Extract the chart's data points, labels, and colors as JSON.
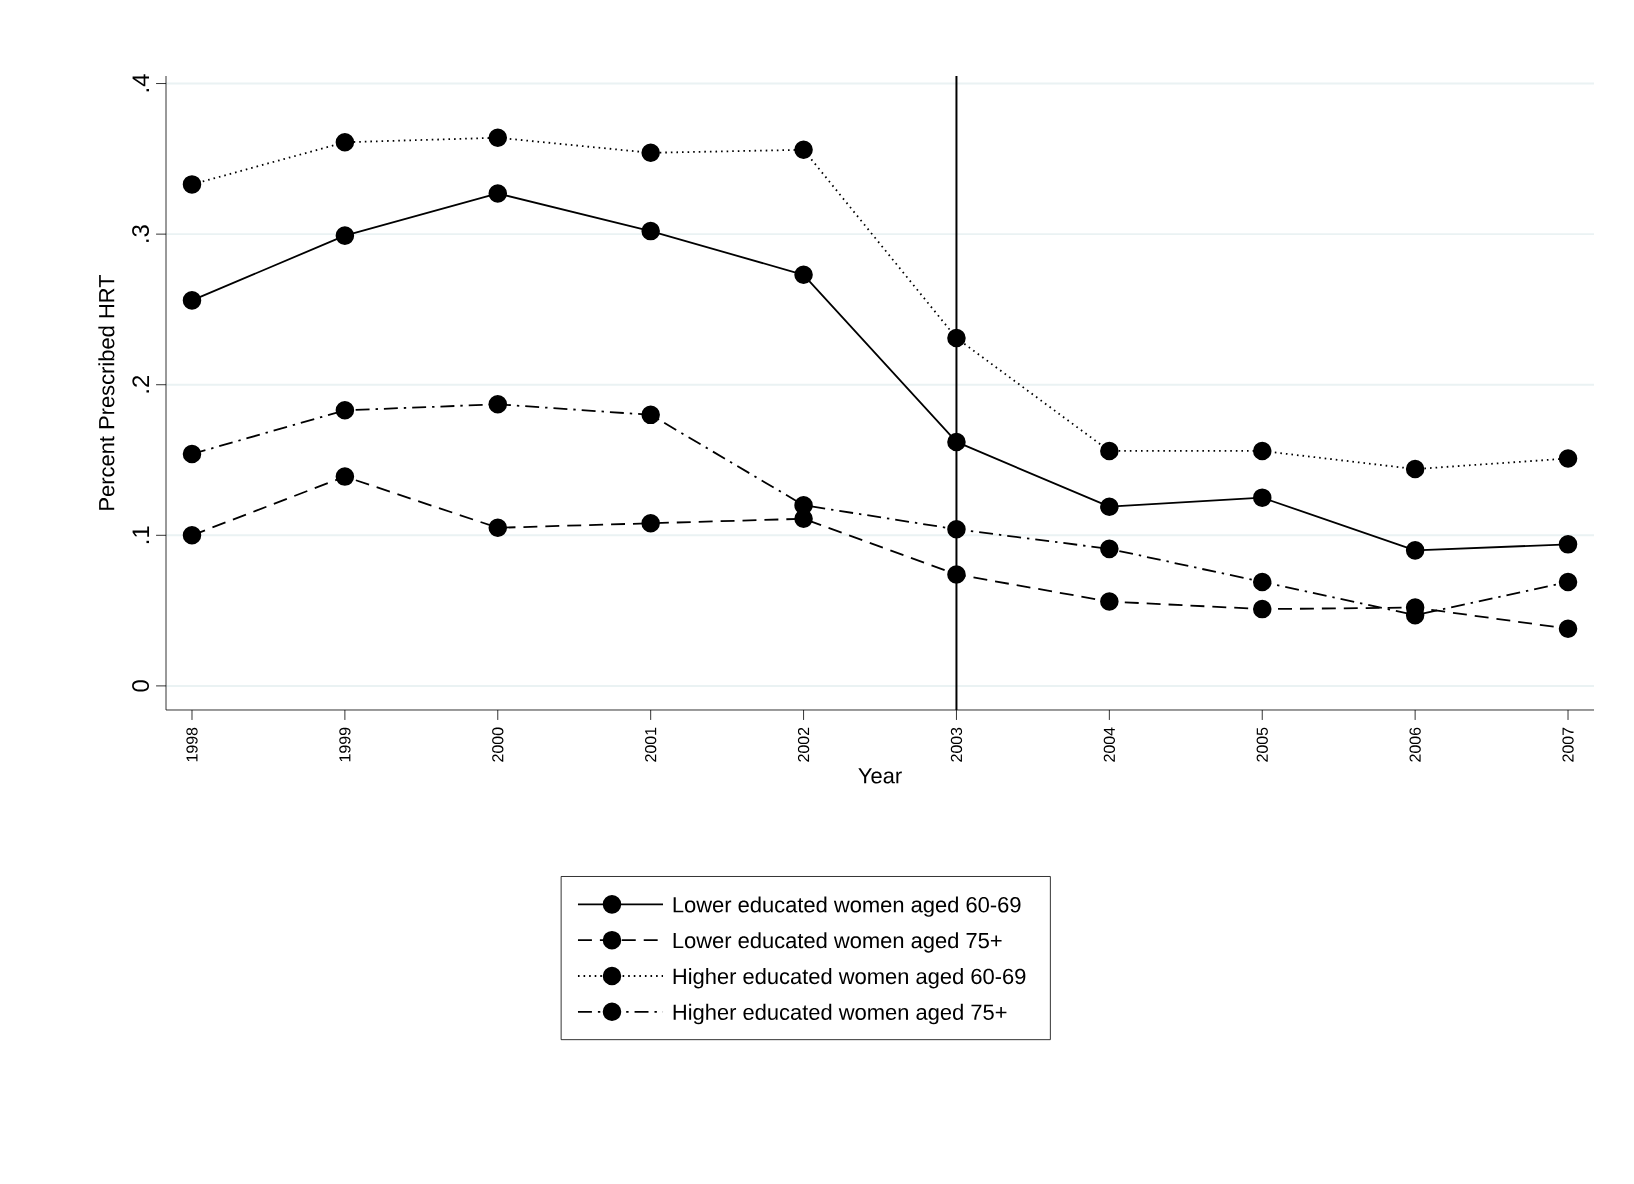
{
  "chart_data": {
    "type": "line",
    "xlabel": "Year",
    "ylabel": "Percent Prescribed HRT",
    "x": [
      1998,
      1999,
      2000,
      2001,
      2002,
      2003,
      2004,
      2005,
      2006,
      2007
    ],
    "xlim": [
      1997.83,
      2007.17
    ],
    "xticks": [
      1998,
      1999,
      2000,
      2001,
      2002,
      2003,
      2004,
      2005,
      2006,
      2007
    ],
    "ylim": [
      -0.016,
      0.405
    ],
    "yticks": [
      {
        "value": 0,
        "label": "0"
      },
      {
        "value": 0.1,
        "label": ".1"
      },
      {
        "value": 0.2,
        "label": ".2"
      },
      {
        "value": 0.3,
        "label": ".3"
      },
      {
        "value": 0.4,
        "label": ".4"
      }
    ],
    "grid": "y",
    "legend": "bottom",
    "marker": "circle",
    "ref_lines": [
      {
        "axis": "x",
        "value": 2003,
        "color": "#000000"
      }
    ],
    "series": [
      {
        "name": "Lower educated women aged 60-69",
        "color": "#000000",
        "line_style": "solid",
        "values": [
          0.256,
          0.299,
          0.327,
          0.302,
          0.273,
          0.162,
          0.119,
          0.125,
          0.09,
          0.094
        ]
      },
      {
        "name": "Lower educated women aged 75+",
        "color": "#000000",
        "line_style": "dashed",
        "values": [
          0.1,
          0.139,
          0.105,
          0.108,
          0.111,
          0.074,
          0.056,
          0.051,
          0.052,
          0.038
        ]
      },
      {
        "name": "Higher educated women aged 60-69",
        "color": "#000000",
        "line_style": "dotted",
        "values": [
          0.333,
          0.361,
          0.364,
          0.354,
          0.356,
          0.231,
          0.156,
          0.156,
          0.144,
          0.151
        ]
      },
      {
        "name": "Higher educated women aged 75+",
        "color": "#000000",
        "line_style": "dashdot",
        "values": [
          0.154,
          0.183,
          0.187,
          0.18,
          0.12,
          0.104,
          0.091,
          0.069,
          0.047,
          0.069
        ]
      }
    ]
  }
}
